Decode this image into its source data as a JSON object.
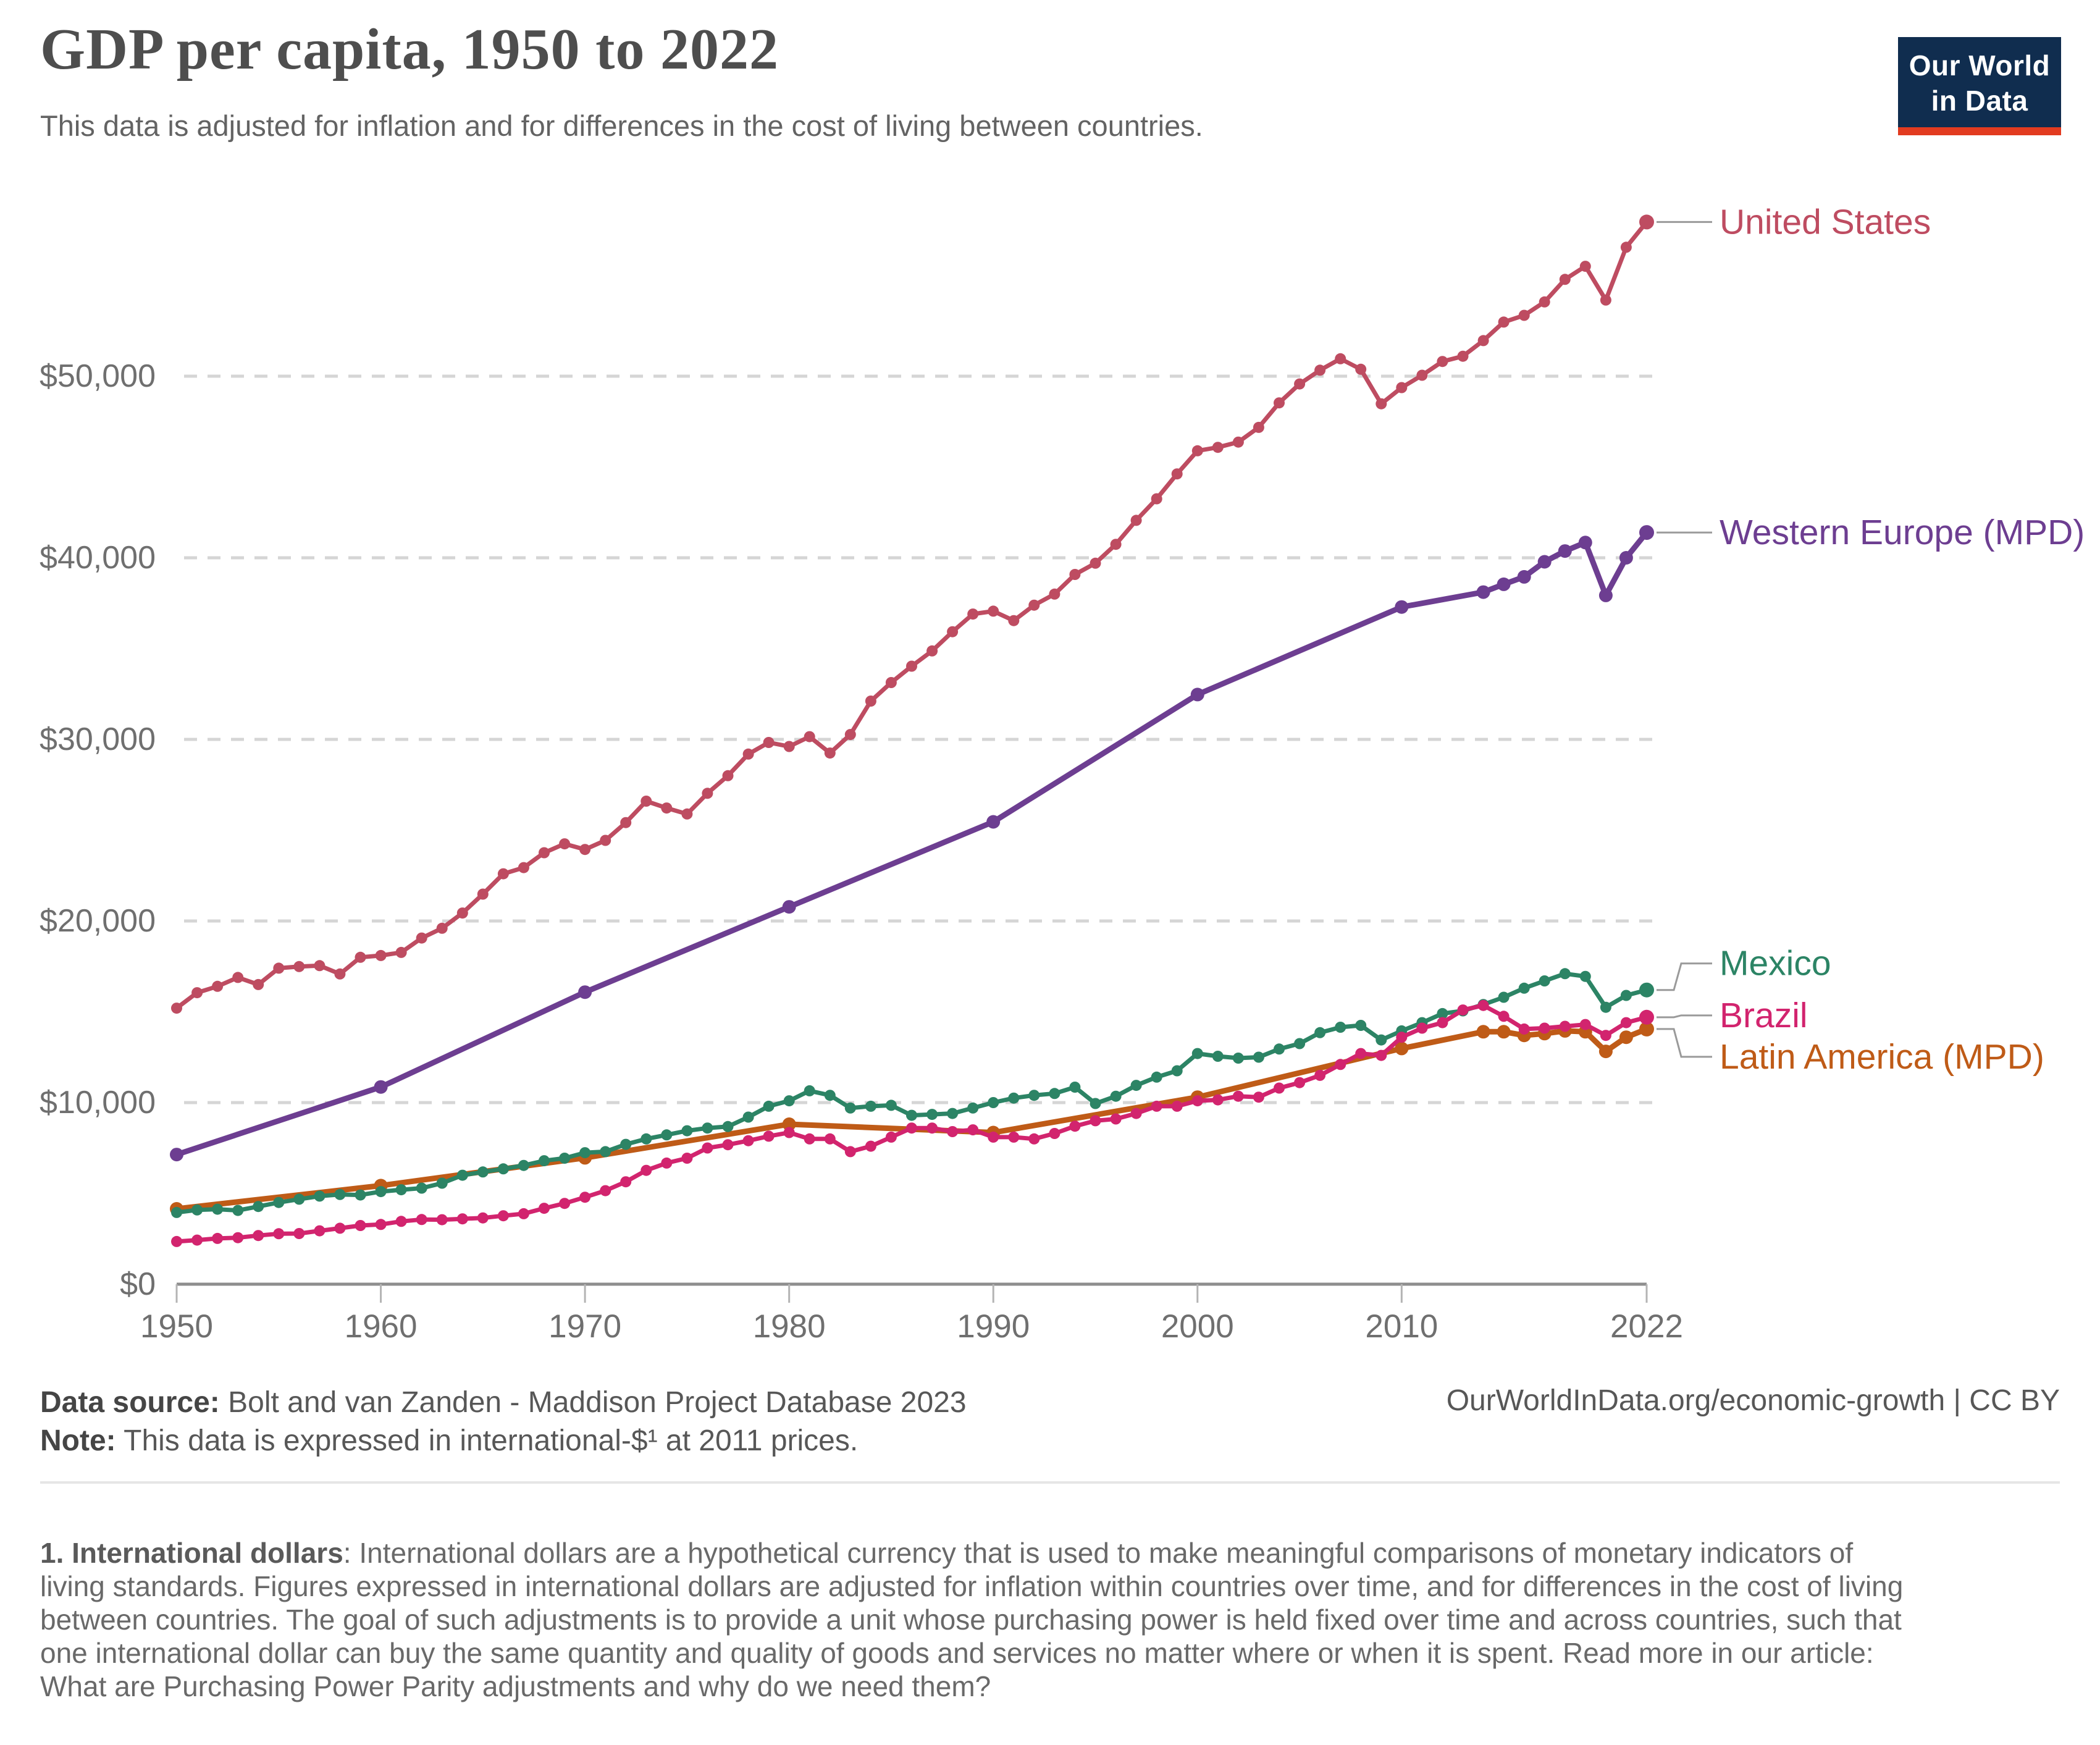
{
  "logo": {
    "line1": "Our World",
    "line2": "in Data"
  },
  "chart_data": {
    "type": "line",
    "title": "GDP per capita, 1950 to 2022",
    "subtitle": "This data is adjusted for inflation and for differences in the cost of living between countries.",
    "xlabel": "",
    "ylabel": "",
    "x_range": [
      1950,
      2022
    ],
    "ylim": [
      0,
      58500
    ],
    "grid": "horizontal-dashed",
    "legend_position": "labels-at-line-ends-right",
    "x_ticks": [
      1950,
      1960,
      1970,
      1980,
      1990,
      2000,
      2010,
      2022
    ],
    "y_ticks": [
      0,
      10000,
      20000,
      30000,
      40000,
      50000
    ],
    "y_tick_labels": [
      "$0",
      "$10,000",
      "$20,000",
      "$30,000",
      "$40,000",
      "$50,000"
    ],
    "series": [
      {
        "name": "Western Europe (MPD)",
        "color": "#6d3e91",
        "points": [
          [
            1950,
            7140
          ],
          [
            1960,
            10860
          ],
          [
            1970,
            16080
          ],
          [
            1980,
            20780
          ],
          [
            1990,
            25460
          ],
          [
            2000,
            32470
          ],
          [
            2010,
            37290
          ],
          [
            2014,
            38110
          ],
          [
            2015,
            38540
          ],
          [
            2016,
            38950
          ],
          [
            2017,
            39780
          ],
          [
            2018,
            40370
          ],
          [
            2019,
            40840
          ],
          [
            2020,
            37930
          ],
          [
            2021,
            40000
          ],
          [
            2022,
            41390
          ]
        ],
        "label_dy": 0
      },
      {
        "name": "Latin America (MPD)",
        "color": "#bf5b17",
        "points": [
          [
            1950,
            4150
          ],
          [
            1960,
            5430
          ],
          [
            1970,
            6960
          ],
          [
            1980,
            8810
          ],
          [
            1990,
            8350
          ],
          [
            2000,
            10300
          ],
          [
            2010,
            12980
          ],
          [
            2014,
            13900
          ],
          [
            2015,
            13900
          ],
          [
            2016,
            13700
          ],
          [
            2017,
            13800
          ],
          [
            2018,
            13950
          ],
          [
            2019,
            13900
          ],
          [
            2020,
            12820
          ],
          [
            2021,
            13600
          ],
          [
            2022,
            14050
          ]
        ],
        "label_dy": 45
      },
      {
        "name": "Mexico",
        "color": "#2c8465",
        "start": 1950,
        "values": [
          3950,
          4090,
          4130,
          4060,
          4280,
          4500,
          4680,
          4850,
          4940,
          4910,
          5100,
          5200,
          5290,
          5560,
          6000,
          6180,
          6350,
          6540,
          6800,
          6940,
          7240,
          7300,
          7700,
          8000,
          8220,
          8450,
          8600,
          8680,
          9200,
          9800,
          10100,
          10650,
          10400,
          9700,
          9800,
          9850,
          9300,
          9350,
          9400,
          9700,
          10000,
          10250,
          10400,
          10500,
          10850,
          9950,
          10350,
          10950,
          11400,
          11750,
          12700,
          12550,
          12450,
          12500,
          12950,
          13250,
          13850,
          14150,
          14250,
          13450,
          13950,
          14400,
          14900,
          15050,
          15400,
          15800,
          16300,
          16700,
          17100,
          16950,
          15250,
          15900,
          16200
        ],
        "label_dy": -43
      },
      {
        "name": "Brazil",
        "color": "#d2246e",
        "start": 1950,
        "values": [
          2350,
          2430,
          2520,
          2560,
          2680,
          2780,
          2790,
          2940,
          3080,
          3230,
          3290,
          3460,
          3560,
          3550,
          3600,
          3650,
          3770,
          3880,
          4180,
          4450,
          4790,
          5150,
          5640,
          6270,
          6670,
          6940,
          7500,
          7680,
          7900,
          8150,
          8350,
          8000,
          8000,
          7300,
          7600,
          8100,
          8600,
          8600,
          8400,
          8500,
          8100,
          8100,
          8000,
          8300,
          8700,
          9000,
          9100,
          9400,
          9800,
          9800,
          10100,
          10150,
          10350,
          10300,
          10800,
          11100,
          11500,
          12100,
          12700,
          12600,
          13600,
          14100,
          14400,
          15100,
          15350,
          14750,
          14050,
          14100,
          14200,
          14300,
          13700,
          14400,
          14700
        ],
        "label_dy": -3
      },
      {
        "name": "United States",
        "color": "#be4c61",
        "start": 1950,
        "values": [
          15200,
          16050,
          16400,
          16890,
          16500,
          17400,
          17490,
          17540,
          17080,
          18000,
          18100,
          18270,
          19060,
          19600,
          20440,
          21480,
          22600,
          22940,
          23760,
          24250,
          23940,
          24440,
          25420,
          26600,
          26220,
          25890,
          27030,
          28000,
          29190,
          29830,
          29610,
          30150,
          29250,
          30270,
          32110,
          33130,
          34030,
          34870,
          35930,
          36900,
          37060,
          36540,
          37390,
          38000,
          39080,
          39700,
          40740,
          42060,
          43250,
          44620,
          45890,
          46080,
          46370,
          47180,
          48530,
          49570,
          50330,
          50960,
          50380,
          48480,
          49370,
          50050,
          50810,
          51100,
          51960,
          52980,
          53350,
          54090,
          55330,
          56050,
          54190,
          57100,
          58490
        ],
        "label_dy": 0
      }
    ]
  },
  "footer": {
    "data_source_label": "Data source:",
    "data_source": " Bolt and van Zanden - Maddison Project Database 2023",
    "note_label": "Note:",
    "note": " This data is expressed in international-$¹ at 2011 prices.",
    "credit": "OurWorldInData.org/economic-growth | CC BY"
  },
  "footnote": {
    "lead": "1. International dollars",
    "lines": [
      ": International dollars are a hypothetical currency that is used to make meaningful comparisons of monetary indicators of",
      "living standards. Figures expressed in international dollars are adjusted for inflation within countries over time, and for differences in the cost of living",
      "between countries. The goal of such adjustments is to provide a unit whose purchasing power is held fixed over time and across countries, such that",
      "one international dollar can buy the same quantity and quality of goods and services no matter where or when it is spent. Read more in our article:",
      "What are Purchasing Power Parity adjustments and why do we need them?"
    ]
  }
}
